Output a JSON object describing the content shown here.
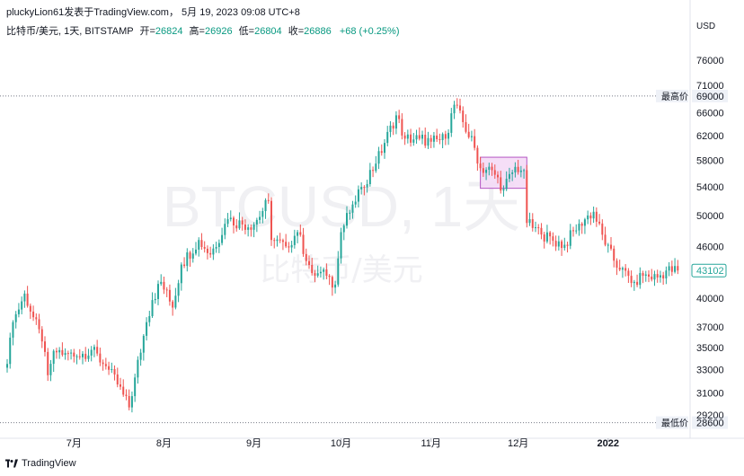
{
  "header": {
    "published": "pluckyLion61发表于TradingView.com，  5月 19, 2023 09:08 UTC+8"
  },
  "legend": {
    "symbol": "比特币/美元, 1天, BITSTAMP",
    "open_label": "开=",
    "open": "26824",
    "high_label": "高=",
    "high": "26926",
    "low_label": "低=",
    "low": "26804",
    "close_label": "收=",
    "close": "26886",
    "change": "+68 (+0.25%)"
  },
  "axis_unit": "USD",
  "watermark": {
    "line1": "BTCUSD, 1天",
    "line2": "比特币/美元"
  },
  "footer": {
    "brand": "TradingView"
  },
  "colors": {
    "up": "#26a69a",
    "down": "#ef5350",
    "box_fill": "#f3d8f6",
    "box_stroke": "#b455c3",
    "grid_dots": "#787b86"
  },
  "chart_data": {
    "type": "candlestick",
    "y_scale": "log",
    "ylim": [
      28000,
      80000
    ],
    "y_ticks": [
      "76000",
      "71000",
      "66000",
      "62000",
      "58000",
      "54000",
      "50000",
      "46000",
      "43000",
      "40000",
      "37000",
      "35000",
      "33000",
      "31000",
      "29200"
    ],
    "x_ticks": [
      {
        "label": "7月",
        "date": "2021-07-01"
      },
      {
        "label": "8月",
        "date": "2021-08-01"
      },
      {
        "label": "9月",
        "date": "2021-09-01"
      },
      {
        "label": "10月",
        "date": "2021-10-01"
      },
      {
        "label": "11月",
        "date": "2021-11-01"
      },
      {
        "label": "12月",
        "date": "2021-12-01"
      },
      {
        "label": "2022",
        "date": "2022-01-01",
        "bold": true
      }
    ],
    "x_range": [
      "2021-06-08",
      "2022-01-28"
    ],
    "horizontal_lines": [
      {
        "name": "最高价",
        "value": 69000
      },
      {
        "name": "最低价",
        "value": 28600
      }
    ],
    "last_price": {
      "label": "43102",
      "value": 43102
    },
    "box": {
      "start": "2021-11-18",
      "end": "2021-12-04",
      "top": 58500,
      "bottom": 53800
    },
    "anchors": [
      [
        "2021-06-08",
        33500
      ],
      [
        "2021-06-10",
        37500
      ],
      [
        "2021-06-14",
        40500
      ],
      [
        "2021-06-17",
        38000
      ],
      [
        "2021-06-20",
        35600
      ],
      [
        "2021-06-22",
        32500
      ],
      [
        "2021-06-24",
        34700
      ],
      [
        "2021-06-28",
        34500
      ],
      [
        "2021-07-02",
        34200
      ],
      [
        "2021-07-07",
        34800
      ],
      [
        "2021-07-12",
        33300
      ],
      [
        "2021-07-16",
        31700
      ],
      [
        "2021-07-20",
        29800
      ],
      [
        "2021-07-22",
        32300
      ],
      [
        "2021-07-26",
        37500
      ],
      [
        "2021-07-28",
        39800
      ],
      [
        "2021-07-31",
        41800
      ],
      [
        "2021-08-04",
        39000
      ],
      [
        "2021-08-07",
        43800
      ],
      [
        "2021-08-13",
        46800
      ],
      [
        "2021-08-17",
        45000
      ],
      [
        "2021-08-23",
        49500
      ],
      [
        "2021-08-28",
        48800
      ],
      [
        "2021-09-01",
        48800
      ],
      [
        "2021-09-06",
        52000
      ],
      [
        "2021-09-07",
        46800
      ],
      [
        "2021-09-12",
        46000
      ],
      [
        "2021-09-16",
        47800
      ],
      [
        "2021-09-21",
        42800
      ],
      [
        "2021-09-26",
        42500
      ],
      [
        "2021-09-29",
        41500
      ],
      [
        "2021-10-01",
        47800
      ],
      [
        "2021-10-05",
        51500
      ],
      [
        "2021-10-08",
        54000
      ],
      [
        "2021-10-13",
        57500
      ],
      [
        "2021-10-16",
        60800
      ],
      [
        "2021-10-20",
        65500
      ],
      [
        "2021-10-23",
        61500
      ],
      [
        "2021-10-28",
        61500
      ],
      [
        "2021-11-01",
        61000
      ],
      [
        "2021-11-06",
        61500
      ],
      [
        "2021-11-09",
        67400
      ],
      [
        "2021-11-12",
        64300
      ],
      [
        "2021-11-16",
        60000
      ],
      [
        "2021-11-18",
        56800
      ],
      [
        "2021-11-22",
        56500
      ],
      [
        "2021-11-26",
        53700
      ],
      [
        "2021-11-30",
        57000
      ],
      [
        "2021-12-03",
        56500
      ],
      [
        "2021-12-04",
        49000
      ],
      [
        "2021-12-09",
        47500
      ],
      [
        "2021-12-13",
        46700
      ],
      [
        "2021-12-17",
        46200
      ],
      [
        "2021-12-22",
        48900
      ],
      [
        "2021-12-27",
        50500
      ],
      [
        "2021-12-31",
        46200
      ],
      [
        "2022-01-05",
        43200
      ],
      [
        "2022-01-10",
        41800
      ],
      [
        "2022-01-13",
        42500
      ],
      [
        "2022-01-18",
        42300
      ],
      [
        "2022-01-21",
        43100
      ],
      [
        "2022-01-25",
        43102
      ]
    ]
  }
}
